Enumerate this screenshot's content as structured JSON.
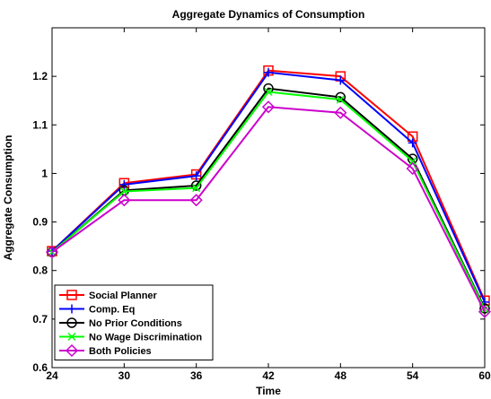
{
  "chart_data": {
    "type": "line",
    "title": "Aggregate Dynamics of Consumption",
    "xlabel": "Time",
    "ylabel": "Aggregate Consumption",
    "x": [
      24,
      30,
      36,
      42,
      48,
      54,
      60
    ],
    "x_ticks": [
      "24",
      "30",
      "36",
      "42",
      "48",
      "54",
      "60"
    ],
    "y_ticks": [
      "0.6",
      "0.7",
      "0.8",
      "0.9",
      "1",
      "1.1",
      "1.2"
    ],
    "xlim": [
      24,
      60
    ],
    "ylim": [
      0.6,
      1.3
    ],
    "grid": false,
    "legend_position": "bottom-left",
    "series": [
      {
        "name": "Social Planner",
        "color": "#ff0000",
        "marker": "square",
        "values": [
          0.84,
          0.98,
          0.998,
          1.212,
          1.2,
          1.076,
          0.738
        ]
      },
      {
        "name": "Comp. Eq",
        "color": "#0000ff",
        "marker": "plus",
        "values": [
          0.84,
          0.977,
          0.995,
          1.208,
          1.192,
          1.063,
          0.735
        ]
      },
      {
        "name": "No Prior Conditions",
        "color": "#000000",
        "marker": "circle",
        "values": [
          0.838,
          0.965,
          0.975,
          1.175,
          1.157,
          1.03,
          0.722
        ]
      },
      {
        "name": "No Wage Discrimination",
        "color": "#00ff00",
        "marker": "x",
        "values": [
          0.838,
          0.963,
          0.97,
          1.168,
          1.152,
          1.025,
          0.72
        ]
      },
      {
        "name": "Both Policies",
        "color": "#cc00cc",
        "marker": "diamond",
        "values": [
          0.838,
          0.945,
          0.945,
          1.137,
          1.125,
          1.01,
          0.715
        ]
      }
    ]
  }
}
